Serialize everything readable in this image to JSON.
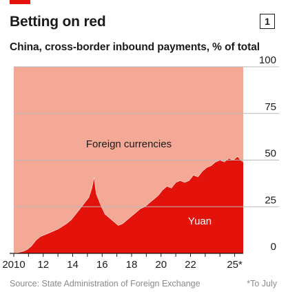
{
  "header": {
    "title": "Betting on red",
    "badge": "1",
    "subtitle": "China, cross-border inbound payments, % of total"
  },
  "footer": {
    "source": "Source: State Administration of Foreign Exchange",
    "note": "*To July"
  },
  "colors": {
    "yuan": "#e3120b",
    "foreign": "#f4a896",
    "accent": "#e3120b",
    "grid": "#b9b9b9",
    "text": "#1a1a1a",
    "muted": "#8a8a8a"
  },
  "chart_data": {
    "type": "area",
    "title": "Betting on red",
    "subtitle": "China, cross-border inbound payments, % of total",
    "xlim": [
      2010,
      2025.58
    ],
    "ylim": [
      0,
      100
    ],
    "x_ticks": [
      2010,
      2012,
      2014,
      2016,
      2018,
      2020,
      2022,
      2025
    ],
    "x_tick_labels": [
      "2010",
      "12",
      "14",
      "16",
      "18",
      "20",
      "22",
      "25*"
    ],
    "y_ticks": [
      0,
      25,
      50,
      75,
      100
    ],
    "y_tick_labels": [
      "0",
      "25",
      "50",
      "75",
      "100"
    ],
    "y_axis_side": "right",
    "grid": true,
    "stacked": true,
    "series": [
      {
        "name": "Yuan",
        "x": [
          2010.0,
          2010.3,
          2010.6,
          2010.9,
          2011.2,
          2011.5,
          2011.8,
          2012.1,
          2012.4,
          2012.7,
          2013.0,
          2013.3,
          2013.6,
          2013.9,
          2014.2,
          2014.5,
          2014.8,
          2015.1,
          2015.3,
          2015.45,
          2015.6,
          2015.9,
          2016.2,
          2016.5,
          2016.8,
          2017.1,
          2017.4,
          2017.7,
          2018.0,
          2018.3,
          2018.6,
          2018.9,
          2019.2,
          2019.5,
          2019.8,
          2020.1,
          2020.4,
          2020.7,
          2021.0,
          2021.3,
          2021.6,
          2021.9,
          2022.2,
          2022.5,
          2022.8,
          2023.1,
          2023.4,
          2023.7,
          2024.0,
          2024.3,
          2024.6,
          2024.9,
          2025.2,
          2025.4,
          2025.58
        ],
        "values": [
          0.0,
          0.5,
          1.0,
          2.0,
          4.0,
          7.0,
          9.0,
          10.0,
          11.0,
          12.0,
          13.0,
          14.5,
          16.0,
          18.0,
          21.0,
          24.0,
          27.0,
          30.0,
          35.0,
          41.0,
          32.0,
          26.0,
          21.0,
          19.0,
          17.0,
          15.0,
          16.0,
          18.0,
          20.0,
          22.0,
          24.0,
          25.0,
          27.0,
          29.0,
          31.0,
          34.0,
          36.0,
          35.0,
          38.0,
          39.0,
          38.0,
          39.0,
          42.0,
          41.0,
          44.0,
          46.0,
          47.0,
          49.0,
          50.0,
          49.0,
          51.0,
          50.0,
          52.0,
          50.0,
          49.0
        ]
      },
      {
        "name": "Foreign currencies",
        "values_note_free": true
      }
    ],
    "labels": {
      "yuan": "Yuan",
      "foreign": "Foreign currencies"
    }
  }
}
